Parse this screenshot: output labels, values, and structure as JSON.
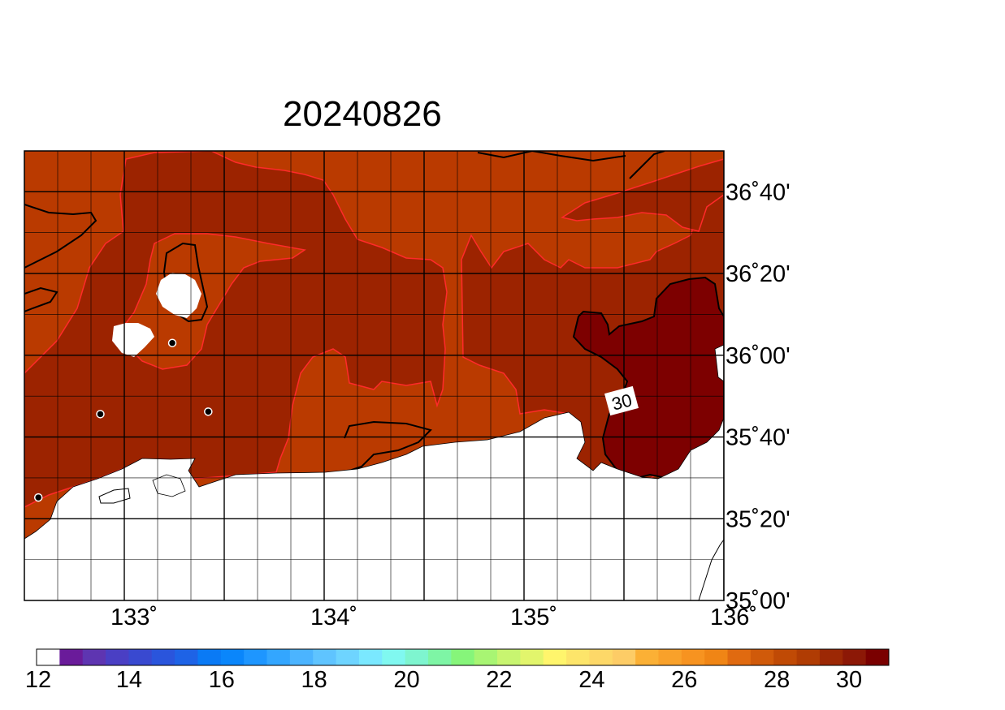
{
  "title": "20240826",
  "map": {
    "lon_range": [
      132.5,
      136.0
    ],
    "lat_range": [
      35.0,
      36.8333
    ],
    "x_tick_labels": [
      {
        "lon": 133.0,
        "label": "133˚"
      },
      {
        "lon": 134.0,
        "label": "134˚"
      },
      {
        "lon": 135.0,
        "label": "135˚"
      },
      {
        "lon": 136.0,
        "label": "136˚"
      }
    ],
    "y_tick_labels": [
      {
        "lat": 36.6667,
        "label": "36˚40'"
      },
      {
        "lat": 36.3333,
        "label": "36˚20'"
      },
      {
        "lat": 36.0,
        "label": "36˚00'"
      },
      {
        "lat": 35.6667,
        "label": "35˚40'"
      },
      {
        "lat": 35.3333,
        "label": "35˚20'"
      },
      {
        "lat": 35.0,
        "label": "35˚00'"
      }
    ],
    "contour_label": "30",
    "station_markers": [
      {
        "lon": 133.24,
        "lat": 36.05
      },
      {
        "lon": 132.88,
        "lat": 35.76
      },
      {
        "lon": 133.42,
        "lat": 35.77
      },
      {
        "lon": 132.57,
        "lat": 35.42
      }
    ]
  },
  "colorbar": {
    "min": 12,
    "max": 30,
    "tick_labels": [
      "12",
      "14",
      "16",
      "18",
      "20",
      "22",
      "24",
      "26",
      "28",
      "30"
    ],
    "colors": [
      "#ffffff",
      "#6a1b9a",
      "#5e35b1",
      "#4a3fc4",
      "#3949d0",
      "#2a55dc",
      "#1e63e6",
      "#0a7af5",
      "#0a86fb",
      "#1e96ff",
      "#33a6ff",
      "#4bb4ff",
      "#5fc4ff",
      "#6ed4ff",
      "#7ae8ff",
      "#80f8f0",
      "#7ef5cf",
      "#7ef5a5",
      "#86f57a",
      "#a8f573",
      "#c8f570",
      "#e2f56c",
      "#fff56c",
      "#fde56a",
      "#fdd868",
      "#fdcc66",
      "#fbb035",
      "#f9a12a",
      "#f79320",
      "#f08515",
      "#e06a10",
      "#d05a0a",
      "#c04a05",
      "#b03c03",
      "#9c2805",
      "#8c1806",
      "#7a0000"
    ]
  },
  "colors": {
    "level_28_29": "#ba3a00",
    "level_29_30": "#9c2300",
    "level_30_plus": "#7d0000",
    "band_edge": "#ff2a2a",
    "contour_line": "#000000",
    "land": "#ffffff"
  }
}
